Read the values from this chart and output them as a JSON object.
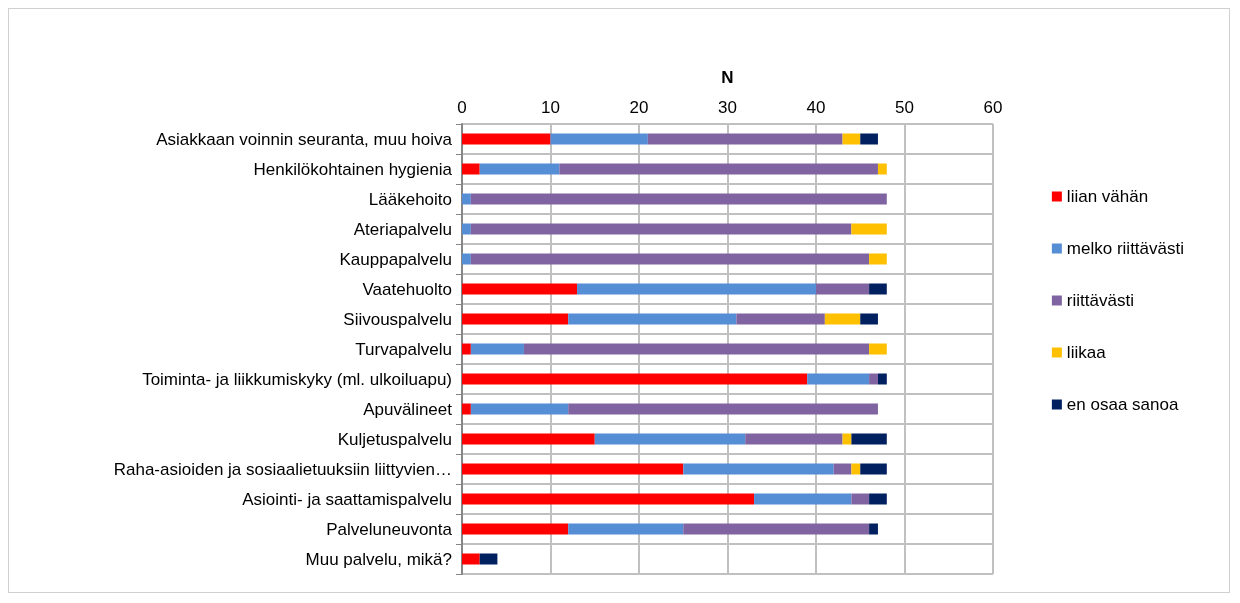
{
  "chart_data": {
    "type": "bar",
    "orientation": "horizontal",
    "stacked": true,
    "xlabel": "N",
    "categories": [
      "Asiakkaan voinnin seuranta, muu hoiva",
      "Henkilökohtainen hygienia",
      "Lääkehoito",
      "Ateriapalvelu",
      "Kauppapalvelu",
      "Vaatehuolto",
      "Siivouspalvelu",
      "Turvapalvelu",
      "Toiminta- ja liikkumiskyky (ml. ulkoiluapu)",
      "Apuvälineet",
      "Kuljetuspalvelu",
      "Raha-asioiden ja sosiaalietuuksiin liittyvien…",
      "Asiointi- ja saattamispalvelu",
      "Palveluneuvonta",
      "Muu palvelu, mikä?"
    ],
    "series": [
      {
        "name": "liian vähän",
        "color": "#ff0000",
        "values": [
          10,
          2,
          0,
          0,
          0,
          13,
          12,
          1,
          39,
          1,
          15,
          25,
          33,
          12,
          2
        ]
      },
      {
        "name": "melko riittävästi",
        "color": "#558ed5",
        "values": [
          11,
          9,
          1,
          1,
          1,
          27,
          19,
          6,
          7,
          11,
          17,
          17,
          11,
          13,
          0
        ]
      },
      {
        "name": "riittävästi",
        "color": "#8064a2",
        "values": [
          22,
          36,
          47,
          43,
          45,
          6,
          10,
          39,
          1,
          35,
          11,
          2,
          2,
          21,
          0
        ]
      },
      {
        "name": "liikaa",
        "color": "#ffc000",
        "values": [
          2,
          1,
          0,
          4,
          2,
          0,
          4,
          2,
          0,
          0,
          1,
          1,
          0,
          0,
          0
        ]
      },
      {
        "name": "en osaa sanoa",
        "color": "#002060",
        "values": [
          2,
          0,
          0,
          0,
          0,
          2,
          2,
          0,
          1,
          0,
          4,
          3,
          2,
          1,
          2
        ]
      }
    ],
    "xlim": [
      0,
      60
    ],
    "xticks": [
      0,
      10,
      20,
      30,
      40,
      50,
      60
    ],
    "grid": true,
    "legend": "right"
  }
}
